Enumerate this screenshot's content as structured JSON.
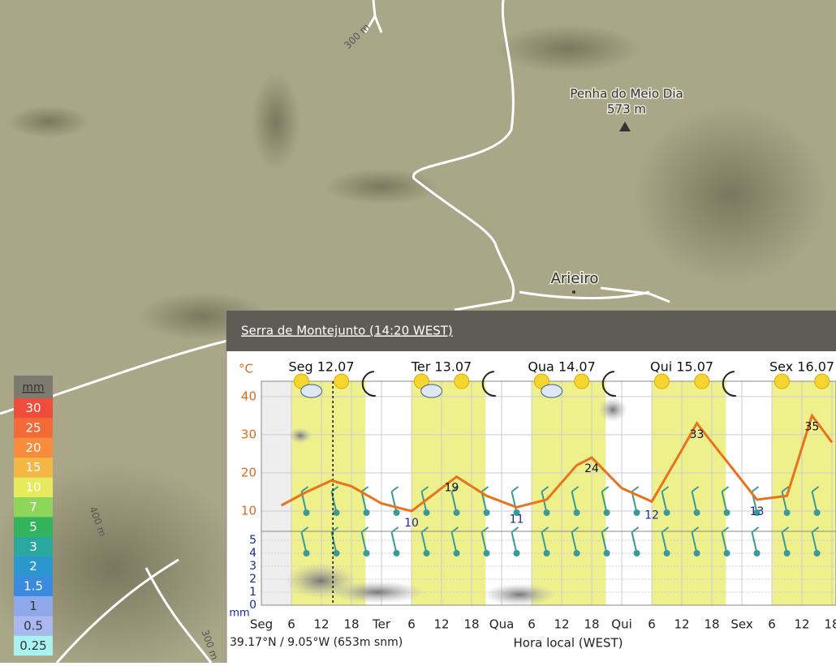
{
  "map": {
    "labels": [
      "300 m",
      "Penha do Meio Dia",
      "573 m",
      "Arieiro",
      "400 m",
      "300 m"
    ]
  },
  "legend": {
    "unit": "mm",
    "values": [
      30,
      25,
      20,
      15,
      10,
      7,
      5,
      3,
      2,
      1.5,
      1,
      0.5,
      0.25
    ],
    "colors": [
      "#f04c3c",
      "#f46a36",
      "#f68c3c",
      "#f5b744",
      "#e6ea5c",
      "#8ed65a",
      "#33b35c",
      "#2aa79e",
      "#2b97cf",
      "#3a8ae0",
      "#8fa8ea",
      "#aab8f0",
      "#a8f2f2"
    ]
  },
  "meteogram": {
    "title": "Serra de Montejunto (14:20 WEST)",
    "temp_unit": "°C",
    "precip_unit": "mm",
    "days": [
      {
        "label": "Seg 12.07",
        "hour": 12
      },
      {
        "label": "Ter 13.07",
        "hour": 36
      },
      {
        "label": "Qua 14.07",
        "hour": 60
      },
      {
        "label": "Qui 15.07",
        "hour": 84
      },
      {
        "label": "Sex 16.07",
        "hour": 108
      }
    ],
    "xlim": [
      0,
      114.8
    ],
    "xticks": [
      {
        "value": 0,
        "label": "Seg"
      },
      6,
      12,
      18,
      {
        "value": 24,
        "label": "Ter"
      },
      {
        "value": 30,
        "label": "6"
      },
      {
        "value": 36,
        "label": "12"
      },
      {
        "value": 42,
        "label": "18"
      },
      {
        "value": 48,
        "label": "Qua"
      },
      {
        "value": 54,
        "label": "6"
      },
      {
        "value": 60,
        "label": "12"
      },
      {
        "value": 66,
        "label": "18"
      },
      {
        "value": 72,
        "label": "Qui"
      },
      {
        "value": 78,
        "label": "6"
      },
      {
        "value": 84,
        "label": "12"
      },
      {
        "value": 90,
        "label": "18"
      },
      {
        "value": 96,
        "label": "Sex"
      },
      {
        "value": 102,
        "label": "6"
      },
      {
        "value": 108,
        "label": "12"
      },
      {
        "value": 114,
        "label": "18"
      }
    ],
    "temp_ylim": [
      4.7,
      44
    ],
    "temp_yticks": [
      10,
      20,
      30,
      40
    ],
    "precip_ylim": [
      0,
      5.7
    ],
    "precip_yticks": [
      0,
      1,
      2,
      3,
      4,
      5
    ],
    "temperature": {
      "color": "#e8731c",
      "x": [
        4,
        9,
        14,
        18,
        24,
        30,
        36,
        39,
        45,
        51,
        57,
        63,
        66,
        72,
        78,
        84,
        87,
        93,
        99,
        105,
        110,
        114
      ],
      "values": [
        11.5,
        15,
        18,
        16.5,
        12,
        10,
        16,
        19,
        14,
        11,
        13,
        22,
        24,
        16,
        12.5,
        26,
        33,
        23,
        13,
        14,
        35,
        28
      ]
    },
    "temp_labels": {
      "x": [
        30,
        38,
        51,
        66,
        78,
        87,
        99,
        110
      ],
      "values": [
        10,
        19,
        11,
        24,
        12,
        33,
        13,
        35
      ]
    },
    "location": "39.17°N / 9.05°W (653m snm)",
    "x_label": "Hora local (WEST)"
  }
}
